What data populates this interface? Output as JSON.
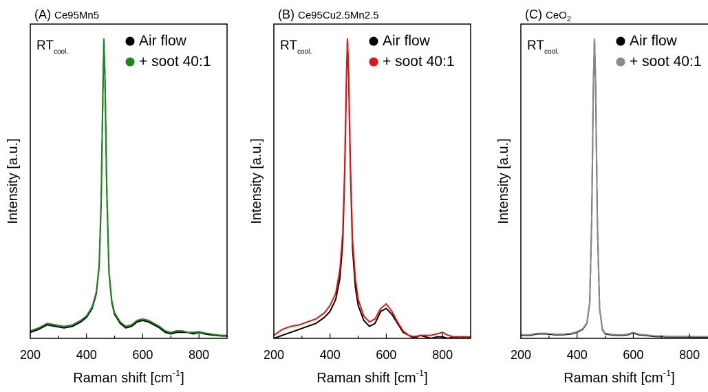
{
  "chart_data": [
    {
      "type": "line",
      "panel_label": "(A)",
      "title": "Ce95Mn5",
      "xlabel": "Raman shift [cm",
      "xlabel_sup": "-1",
      "xlabel_end": "]",
      "ylabel": "Intensity [a.u.]",
      "annotation": "RT",
      "annotation_sub": "cool.",
      "xlim": [
        200,
        900
      ],
      "ylim": [
        0,
        1.05
      ],
      "xticks": [
        200,
        400,
        600,
        800
      ],
      "legend_position": "top-right",
      "series": [
        {
          "name": "Air flow",
          "color": "#000000",
          "x": [
            200,
            230,
            260,
            290,
            320,
            350,
            380,
            400,
            420,
            435,
            445,
            452,
            458,
            462,
            466,
            472,
            480,
            490,
            500,
            520,
            540,
            560,
            580,
            600,
            620,
            640,
            660,
            680,
            700,
            720,
            740,
            760,
            780,
            800,
            820,
            840,
            860,
            880,
            900
          ],
          "y": [
            0.02,
            0.03,
            0.045,
            0.04,
            0.035,
            0.04,
            0.055,
            0.07,
            0.1,
            0.15,
            0.24,
            0.45,
            0.8,
            1.0,
            0.85,
            0.5,
            0.22,
            0.12,
            0.08,
            0.05,
            0.035,
            0.04,
            0.055,
            0.06,
            0.055,
            0.045,
            0.035,
            0.02,
            0.015,
            0.02,
            0.02,
            0.02,
            0.015,
            0.02,
            0.015,
            0.012,
            0.01,
            0.008,
            0.008
          ]
        },
        {
          "name": "+ soot 40:1",
          "color": "#1a8a1a",
          "x": [
            200,
            230,
            260,
            290,
            320,
            350,
            380,
            400,
            420,
            435,
            445,
            452,
            458,
            462,
            466,
            472,
            480,
            490,
            500,
            520,
            540,
            560,
            580,
            600,
            620,
            640,
            660,
            680,
            700,
            720,
            740,
            760,
            780,
            800,
            820,
            840,
            860,
            880,
            900
          ],
          "y": [
            0.025,
            0.035,
            0.05,
            0.045,
            0.04,
            0.045,
            0.06,
            0.075,
            0.105,
            0.155,
            0.245,
            0.46,
            0.81,
            1.0,
            0.86,
            0.51,
            0.225,
            0.125,
            0.085,
            0.055,
            0.04,
            0.045,
            0.06,
            0.065,
            0.06,
            0.05,
            0.04,
            0.025,
            0.02,
            0.025,
            0.025,
            0.02,
            0.02,
            0.022,
            0.018,
            0.015,
            0.012,
            0.01,
            0.01
          ]
        }
      ]
    },
    {
      "type": "line",
      "panel_label": "(B)",
      "title": "Ce95Cu2.5Mn2.5",
      "xlabel": "Raman shift [cm",
      "xlabel_sup": "-1",
      "xlabel_end": "]",
      "ylabel": "Intensity [a.u.]",
      "annotation": "RT",
      "annotation_sub": "cool.",
      "xlim": [
        200,
        900
      ],
      "ylim": [
        0,
        1.05
      ],
      "xticks": [
        200,
        400,
        600,
        800
      ],
      "legend_position": "top-right",
      "series": [
        {
          "name": "Air flow",
          "color": "#000000",
          "x": [
            200,
            230,
            260,
            290,
            320,
            350,
            380,
            400,
            420,
            435,
            445,
            452,
            458,
            462,
            466,
            472,
            480,
            490,
            500,
            520,
            540,
            560,
            580,
            600,
            620,
            640,
            660,
            680,
            700,
            720,
            740,
            760,
            780,
            800,
            820,
            840,
            860,
            880,
            900
          ],
          "y": [
            0.0,
            0.01,
            0.02,
            0.03,
            0.04,
            0.05,
            0.07,
            0.09,
            0.13,
            0.2,
            0.32,
            0.55,
            0.85,
            1.0,
            0.88,
            0.58,
            0.3,
            0.17,
            0.11,
            0.06,
            0.04,
            0.05,
            0.09,
            0.1,
            0.08,
            0.05,
            0.02,
            0.01,
            0.0,
            0.01,
            0.005,
            0.0,
            0.005,
            0.005,
            0.0,
            0.005,
            0.0,
            0.005,
            0.0
          ]
        },
        {
          "name": "+ soot 40:1",
          "color": "#e8140c",
          "x": [
            200,
            230,
            260,
            290,
            320,
            350,
            380,
            400,
            420,
            435,
            445,
            452,
            458,
            462,
            466,
            472,
            480,
            490,
            500,
            520,
            540,
            560,
            580,
            600,
            620,
            640,
            660,
            680,
            700,
            720,
            740,
            760,
            780,
            800,
            820,
            840,
            860,
            880,
            900
          ],
          "y": [
            0.01,
            0.03,
            0.04,
            0.045,
            0.055,
            0.065,
            0.085,
            0.11,
            0.15,
            0.23,
            0.35,
            0.57,
            0.86,
            1.0,
            0.89,
            0.6,
            0.33,
            0.2,
            0.13,
            0.075,
            0.055,
            0.065,
            0.1,
            0.115,
            0.09,
            0.055,
            0.025,
            0.01,
            0.005,
            0.01,
            0.01,
            0.01,
            0.015,
            0.02,
            0.01,
            0.005,
            0.005,
            0.005,
            0.005
          ]
        }
      ]
    },
    {
      "type": "line",
      "panel_label": "(C)",
      "title": "CeO",
      "title_sub": "2",
      "xlabel": "Raman shift [cm",
      "xlabel_sup": "-1",
      "xlabel_end": "]",
      "ylabel": "Intensity [a.u.]",
      "annotation": "RT",
      "annotation_sub": "cool.",
      "xlim": [
        200,
        900
      ],
      "ylim": [
        0,
        1.05
      ],
      "xticks": [
        200,
        400,
        600,
        800
      ],
      "legend_position": "top-right",
      "series": [
        {
          "name": "Air flow",
          "color": "#000000",
          "x": [
            200,
            230,
            260,
            290,
            320,
            350,
            380,
            400,
            420,
            435,
            445,
            452,
            458,
            462,
            466,
            472,
            480,
            490,
            500,
            520,
            540,
            560,
            580,
            600,
            620,
            640,
            660,
            680,
            700,
            720,
            740,
            760,
            780,
            800,
            820,
            840,
            860,
            880,
            900
          ],
          "y": [
            0.01,
            0.01,
            0.015,
            0.015,
            0.012,
            0.012,
            0.015,
            0.02,
            0.03,
            0.05,
            0.12,
            0.4,
            0.85,
            1.0,
            0.85,
            0.4,
            0.1,
            0.03,
            0.015,
            0.012,
            0.01,
            0.01,
            0.012,
            0.018,
            0.012,
            0.01,
            0.008,
            0.006,
            0.006,
            0.005,
            0.005,
            0.005,
            0.005,
            0.005,
            0.004,
            0.004,
            0.004,
            0.004,
            0.004
          ]
        },
        {
          "name": "+ soot 40:1",
          "color": "#8a8a8a",
          "x": [
            200,
            230,
            260,
            290,
            320,
            350,
            380,
            400,
            420,
            435,
            445,
            452,
            458,
            462,
            466,
            472,
            480,
            490,
            500,
            520,
            540,
            560,
            580,
            600,
            620,
            640,
            660,
            680,
            700,
            720,
            740,
            760,
            780,
            800,
            820,
            840,
            860,
            880,
            900
          ],
          "y": [
            0.012,
            0.012,
            0.017,
            0.017,
            0.014,
            0.014,
            0.017,
            0.022,
            0.032,
            0.052,
            0.122,
            0.4,
            0.85,
            1.0,
            0.85,
            0.4,
            0.1,
            0.032,
            0.017,
            0.014,
            0.012,
            0.012,
            0.014,
            0.02,
            0.014,
            0.012,
            0.01,
            0.008,
            0.008,
            0.007,
            0.007,
            0.007,
            0.007,
            0.007,
            0.006,
            0.006,
            0.006,
            0.006,
            0.006
          ]
        }
      ]
    }
  ]
}
